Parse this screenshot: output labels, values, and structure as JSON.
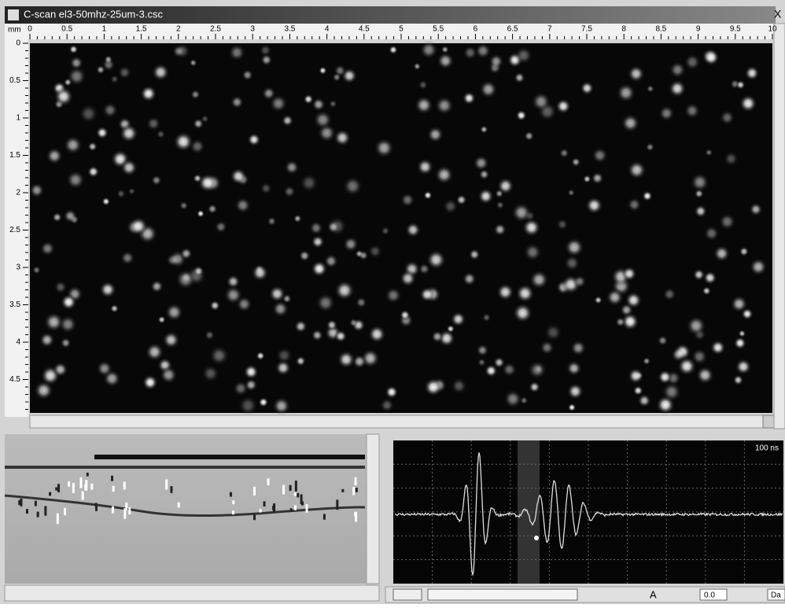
{
  "window": {
    "title": "C-scan el3-50mhz-25um-3.csc",
    "close": "X"
  },
  "ruler_top": {
    "unit": "mm",
    "labels": [
      "0",
      "0.5",
      "1",
      "1.5",
      "2",
      "2.5",
      "3",
      "3.5",
      "4",
      "4.5",
      "5",
      "5.5",
      "6",
      "6.5",
      "7",
      "7.5",
      "8",
      "8.5",
      "9",
      "9.5",
      "10"
    ]
  },
  "ruler_left": {
    "labels": [
      "0",
      "0.5",
      "1",
      "1.5",
      "2",
      "2.5",
      "3",
      "3.5",
      "4",
      "4.5"
    ]
  },
  "ascan": {
    "time_label": "100 ns"
  },
  "toolbar": {
    "text_tool": "A",
    "value": "0.0",
    "field": "Da"
  }
}
